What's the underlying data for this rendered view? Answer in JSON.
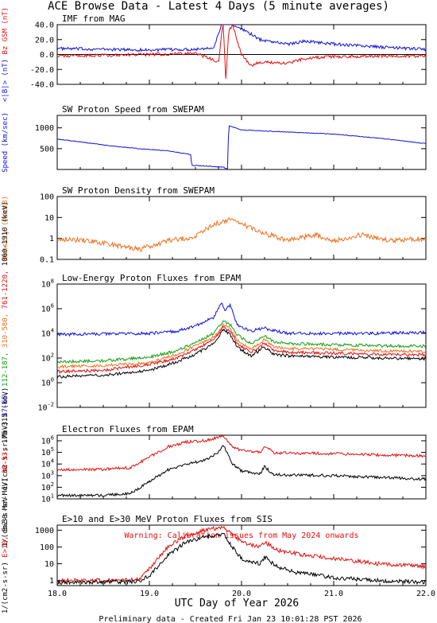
{
  "page_title": "ACE Browse Data - Latest 4 Days (5 minute averages)",
  "footer": "Preliminary data - Created Fri Jan 23 10:01:28 PST 2026",
  "x_axis": {
    "label": "UTC Day of Year 2026",
    "ticks": [
      "18.0",
      "19.0",
      "20.0",
      "21.0",
      "22.0"
    ],
    "range": [
      18.0,
      22.0
    ]
  },
  "colors": {
    "blue": "#1010e0",
    "red": "#e01010",
    "green": "#10a010",
    "orange": "#f07020",
    "black": "#000000"
  },
  "chart_data": [
    {
      "type": "line",
      "title": "IMF from MAG",
      "ylabel_parts": [
        "<|B|> (nT)",
        "Bz GSM (nT)"
      ],
      "ylim": [
        -40,
        40
      ],
      "scale": "linear",
      "yticks": [
        "40.0",
        "20.0",
        "0.0",
        "-20.0",
        "-40.0"
      ],
      "tick_values": [
        40,
        20,
        0,
        -20,
        -40
      ],
      "series": [
        {
          "name": "<|B|>",
          "color": "blue",
          "x": [
            18.0,
            18.5,
            19.0,
            19.5,
            19.7,
            19.8,
            19.85,
            19.9,
            20.0,
            20.2,
            20.5,
            20.7,
            21.0,
            21.5,
            22.0
          ],
          "y": [
            8,
            7,
            6,
            7,
            10,
            45,
            45,
            40,
            35,
            20,
            14,
            18,
            14,
            10,
            7
          ]
        },
        {
          "name": "Bz GSM",
          "color": "red",
          "x": [
            18.0,
            18.5,
            19.0,
            19.5,
            19.75,
            19.8,
            19.83,
            19.86,
            19.9,
            20.0,
            20.1,
            20.2,
            20.5,
            20.7,
            21.0,
            21.5,
            22.0
          ],
          "y": [
            -2,
            -1,
            0,
            2,
            -10,
            45,
            -35,
            30,
            40,
            0,
            -15,
            -10,
            -12,
            -5,
            -3,
            -2,
            -2
          ]
        }
      ]
    },
    {
      "type": "line",
      "title": "SW Proton Speed from SWEPAM",
      "ylabel": "Speed (km/sec)",
      "ylim": [
        0,
        1300
      ],
      "scale": "linear",
      "yticks": [
        "1000",
        "500"
      ],
      "tick_values": [
        1000,
        500
      ],
      "series": [
        {
          "name": "Speed",
          "color": "blue",
          "x": [
            18.0,
            18.3,
            18.6,
            18.9,
            19.2,
            19.45,
            19.46,
            19.7,
            19.8,
            19.85,
            19.86,
            20.0,
            20.5,
            21.0,
            21.5,
            22.0
          ],
          "y": [
            730,
            650,
            560,
            500,
            450,
            360,
            100,
            70,
            60,
            0,
            1050,
            950,
            900,
            850,
            750,
            620
          ]
        }
      ]
    },
    {
      "type": "line",
      "title": "SW Proton Density from SWEPAM",
      "ylabel": "Density (#/cm3)",
      "ylim": [
        0.1,
        100
      ],
      "scale": "log",
      "yticks": [
        "100",
        "10",
        "1",
        "0.1"
      ],
      "tick_values": [
        100,
        10,
        1,
        0.1
      ],
      "series": [
        {
          "name": "Density",
          "color": "orange",
          "x": [
            18.0,
            18.3,
            18.6,
            18.9,
            19.2,
            19.5,
            19.7,
            19.9,
            20.2,
            20.5,
            20.8,
            21.0,
            21.3,
            21.6,
            22.0
          ],
          "y": [
            1.0,
            0.8,
            0.5,
            0.3,
            0.8,
            1.2,
            5.0,
            8.0,
            2.0,
            0.8,
            1.5,
            0.8,
            1.5,
            0.8,
            1.0
          ]
        }
      ]
    },
    {
      "type": "line",
      "title": "Low-Energy Proton Fluxes from EPAM",
      "ylabel_parts": [
        "1/(cm2-s-sr-MeV)",
        "47-65,",
        "112-187,",
        "310-580,",
        "761-1220,",
        "1060-1910 (keV)"
      ],
      "ylim": [
        0.01,
        100000000
      ],
      "scale": "log",
      "yticks": [
        "10^8",
        "10^6",
        "10^4",
        "10^2",
        "10^0",
        "10^-2"
      ],
      "tick_values": [
        100000000,
        1000000,
        10000,
        100,
        1,
        0.01
      ],
      "series": [
        {
          "name": "47-65",
          "color": "blue",
          "x": [
            18.0,
            18.5,
            19.0,
            19.3,
            19.5,
            19.7,
            19.78,
            19.82,
            19.88,
            19.95,
            20.1,
            20.25,
            20.3,
            20.5,
            21.0,
            21.5,
            22.0
          ],
          "y": [
            8000,
            9000,
            10000,
            15000,
            40000,
            200000,
            3000000,
            800000,
            2000000,
            50000,
            15000,
            30000,
            20000,
            10000,
            10000,
            10000,
            12000
          ]
        },
        {
          "name": "112-187",
          "color": "green",
          "x": [
            18.0,
            18.5,
            19.0,
            19.3,
            19.5,
            19.7,
            19.8,
            19.88,
            19.95,
            20.1,
            20.25,
            20.35,
            20.5,
            21.0,
            21.5,
            22.0
          ],
          "y": [
            50,
            60,
            120,
            400,
            2000,
            10000,
            100000,
            50000,
            8000,
            1500,
            7000,
            2000,
            1500,
            1200,
            1000,
            900
          ]
        },
        {
          "name": "310-580",
          "color": "orange",
          "x": [
            18.0,
            18.5,
            19.0,
            19.3,
            19.5,
            19.7,
            19.8,
            19.88,
            19.95,
            20.1,
            20.25,
            20.35,
            20.5,
            21.0,
            21.5,
            22.0
          ],
          "y": [
            20,
            25,
            40,
            200,
            1000,
            5000,
            50000,
            25000,
            3000,
            500,
            3000,
            800,
            600,
            500,
            400,
            350
          ]
        },
        {
          "name": "761-1220",
          "color": "red",
          "x": [
            18.0,
            18.5,
            19.0,
            19.3,
            19.5,
            19.7,
            19.8,
            19.88,
            19.95,
            20.1,
            20.25,
            20.35,
            20.5,
            21.0,
            21.5,
            22.0
          ],
          "y": [
            8,
            10,
            30,
            100,
            500,
            3000,
            30000,
            15000,
            1500,
            300,
            1500,
            400,
            300,
            250,
            200,
            180
          ]
        },
        {
          "name": "1060-1910",
          "color": "black",
          "x": [
            18.0,
            18.5,
            19.0,
            19.3,
            19.5,
            19.7,
            19.8,
            19.88,
            19.95,
            20.1,
            20.25,
            20.35,
            20.5,
            21.0,
            21.5,
            22.0
          ],
          "y": [
            3,
            4,
            10,
            50,
            200,
            1500,
            20000,
            8000,
            800,
            150,
            800,
            200,
            150,
            120,
            100,
            90
          ]
        }
      ]
    },
    {
      "type": "line",
      "title": "Electron Fluxes from EPAM",
      "ylabel_parts": [
        "1/(cm2-s-sr-MeV)",
        "38-53,",
        "175-315 (keV)"
      ],
      "ylim": [
        10,
        3000000
      ],
      "scale": "log",
      "yticks": [
        "10^6",
        "10^5",
        "10^4",
        "10^3",
        "10^2",
        "10^1"
      ],
      "tick_values": [
        1000000,
        100000,
        10000,
        1000,
        100,
        10
      ],
      "series": [
        {
          "name": "38-53",
          "color": "red",
          "x": [
            18.0,
            18.5,
            18.8,
            19.0,
            19.2,
            19.4,
            19.6,
            19.75,
            19.8,
            19.9,
            20.0,
            20.2,
            20.25,
            20.35,
            21.0,
            21.5,
            22.0
          ],
          "y": [
            3000,
            3500,
            5000,
            40000,
            300000,
            800000,
            1000000,
            2000000,
            3000000,
            300000,
            150000,
            100000,
            400000,
            90000,
            80000,
            60000,
            50000
          ]
        },
        {
          "name": "175-315",
          "color": "black",
          "x": [
            18.0,
            18.5,
            18.8,
            19.0,
            19.2,
            19.4,
            19.6,
            19.75,
            19.8,
            19.9,
            20.0,
            20.2,
            20.25,
            20.35,
            21.0,
            21.5,
            22.0
          ],
          "y": [
            20,
            20,
            30,
            300,
            3000,
            10000,
            20000,
            100000,
            500000,
            10000,
            2500,
            1500,
            6000,
            1200,
            1000,
            700,
            500
          ]
        }
      ]
    },
    {
      "type": "line",
      "title": "E>10 and E>30 MeV Proton Fluxes from SIS",
      "ylabel_parts": [
        "1/(cm2-s-sr)",
        "E>10,",
        "E>30 MeV"
      ],
      "annotation": "Warning: Calibration issues from May 2024 onwards",
      "ylim": [
        0.5,
        2000
      ],
      "scale": "log",
      "yticks": [
        "1000",
        "100",
        "10",
        "1"
      ],
      "tick_values": [
        1000,
        100,
        10,
        1
      ],
      "series": [
        {
          "name": "E>10",
          "color": "red",
          "x": [
            18.0,
            18.5,
            18.9,
            19.0,
            19.2,
            19.4,
            19.6,
            19.8,
            19.9,
            20.0,
            20.2,
            20.25,
            20.4,
            20.6,
            21.0,
            21.5,
            22.0
          ],
          "y": [
            1,
            1,
            1.2,
            5,
            100,
            500,
            1000,
            1500,
            600,
            200,
            100,
            200,
            60,
            40,
            20,
            10,
            7
          ]
        },
        {
          "name": "E>30",
          "color": "black",
          "x": [
            18.0,
            18.5,
            18.9,
            19.0,
            19.2,
            19.4,
            19.6,
            19.8,
            19.9,
            20.0,
            20.2,
            20.25,
            20.4,
            20.6,
            21.0,
            21.5,
            22.0
          ],
          "y": [
            0.8,
            0.8,
            0.9,
            2,
            30,
            200,
            400,
            600,
            100,
            20,
            10,
            25,
            6,
            3,
            1.5,
            1,
            0.8
          ]
        }
      ]
    }
  ]
}
